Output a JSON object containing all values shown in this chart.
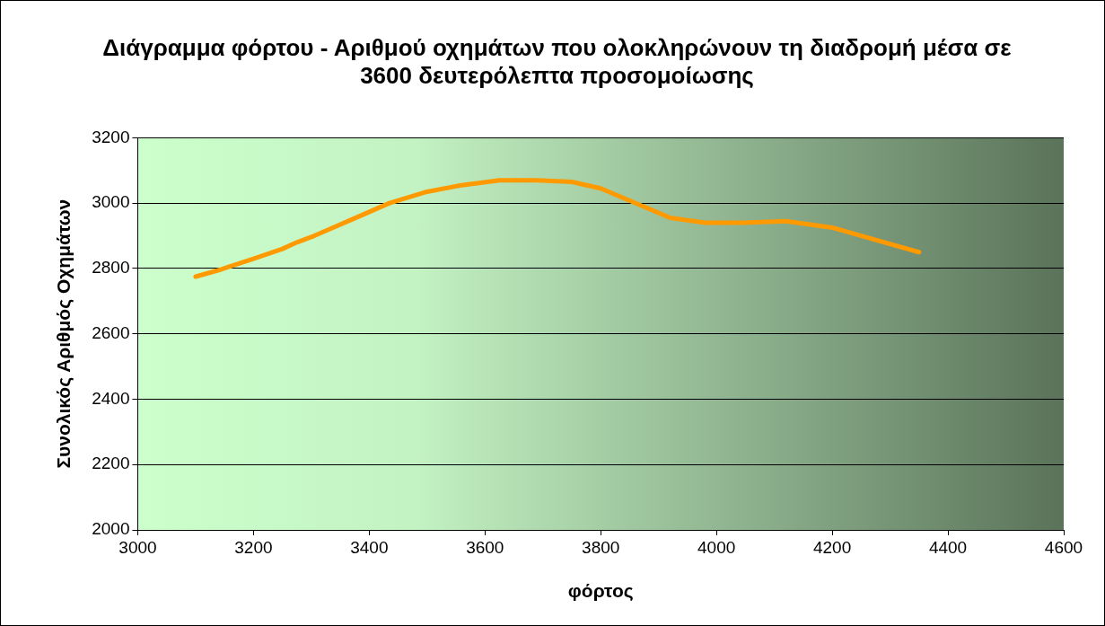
{
  "chart_data": {
    "type": "line",
    "title": "Διάγραμμα φόρτου - Αριθμού οχημάτων που ολοκληρώνουν τη διαδρομή μέσα σε 3600 δευτερόλεπτα προσομοίωσης",
    "xlabel": "φόρτος",
    "ylabel": "Συνολικός Αριθμός Οχημάτων",
    "series": [
      {
        "color": "#ff9900",
        "x": [
          3100,
          3140,
          3200,
          3250,
          3275,
          3305,
          3370,
          3435,
          3500,
          3560,
          3625,
          3690,
          3750,
          3800,
          3920,
          3980,
          4045,
          4120,
          4200,
          4350
        ],
        "values": [
          2775,
          2795,
          2830,
          2860,
          2880,
          2900,
          2950,
          3000,
          3035,
          3055,
          3070,
          3070,
          3065,
          3045,
          2955,
          2940,
          2940,
          2945,
          2925,
          2850
        ]
      }
    ],
    "xlim": [
      3000,
      4600
    ],
    "xticks": [
      3000,
      3200,
      3400,
      3600,
      3800,
      4000,
      4200,
      4400,
      4600
    ],
    "ylim": [
      2000,
      3200
    ],
    "yticks": [
      2000,
      2200,
      2400,
      2600,
      2800,
      3000,
      3200
    ],
    "grid": "y",
    "legend": false,
    "marker": "none",
    "line_style": "solid"
  }
}
